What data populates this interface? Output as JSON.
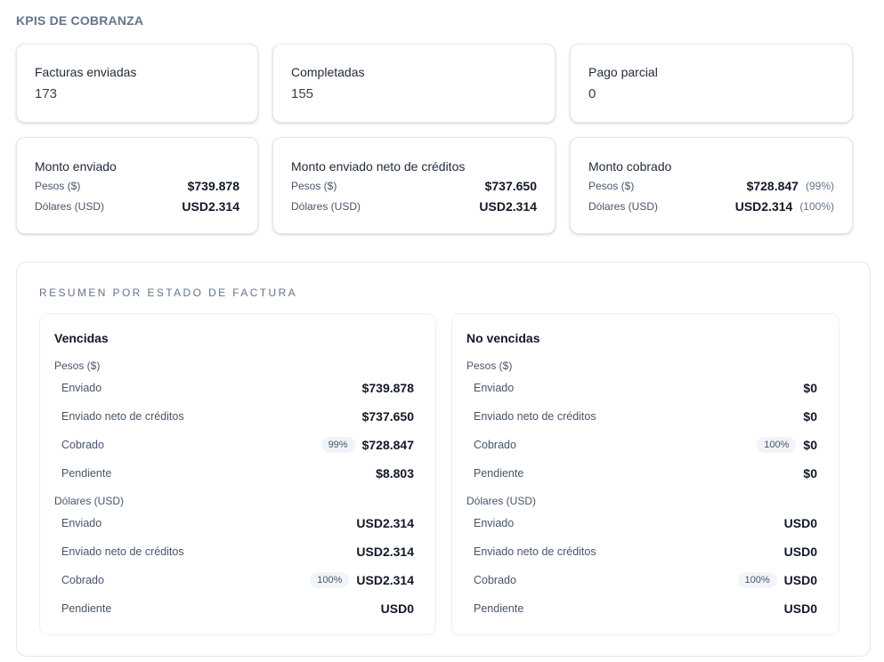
{
  "header": {
    "title": "KPIS DE COBRANZA"
  },
  "kpis": [
    {
      "label": "Facturas enviadas",
      "value": "173"
    },
    {
      "label": "Completadas",
      "value": "155"
    },
    {
      "label": "Pago parcial",
      "value": "0"
    }
  ],
  "money": [
    {
      "title": "Monto enviado",
      "rows": [
        {
          "label": "Pesos ($)",
          "value": "$739.878",
          "pct": ""
        },
        {
          "label": "Dólares (USD)",
          "value": "USD2.314",
          "pct": ""
        }
      ]
    },
    {
      "title": "Monto enviado neto de créditos",
      "rows": [
        {
          "label": "Pesos ($)",
          "value": "$737.650",
          "pct": ""
        },
        {
          "label": "Dólares (USD)",
          "value": "USD2.314",
          "pct": ""
        }
      ]
    },
    {
      "title": "Monto cobrado",
      "rows": [
        {
          "label": "Pesos ($)",
          "value": "$728.847",
          "pct": "(99%)"
        },
        {
          "label": "Dólares (USD)",
          "value": "USD2.314",
          "pct": "(100%)"
        }
      ]
    }
  ],
  "summary": {
    "title": "RESUMEN POR ESTADO DE FACTURA",
    "panels": [
      {
        "title": "Vencidas",
        "pesos_label": "Pesos ($)",
        "pesos": [
          {
            "label": "Enviado",
            "value": "$739.878",
            "badge": ""
          },
          {
            "label": "Enviado neto de créditos",
            "value": "$737.650",
            "badge": ""
          },
          {
            "label": "Cobrado",
            "value": "$728.847",
            "badge": "99%"
          },
          {
            "label": "Pendiente",
            "value": "$8.803",
            "badge": ""
          }
        ],
        "usd_label": "Dólares (USD)",
        "usd": [
          {
            "label": "Enviado",
            "value": "USD2.314",
            "badge": ""
          },
          {
            "label": "Enviado neto de créditos",
            "value": "USD2.314",
            "badge": ""
          },
          {
            "label": "Cobrado",
            "value": "USD2.314",
            "badge": "100%"
          },
          {
            "label": "Pendiente",
            "value": "USD0",
            "badge": ""
          }
        ]
      },
      {
        "title": "No vencidas",
        "pesos_label": "Pesos ($)",
        "pesos": [
          {
            "label": "Enviado",
            "value": "$0",
            "badge": ""
          },
          {
            "label": "Enviado neto de créditos",
            "value": "$0",
            "badge": ""
          },
          {
            "label": "Cobrado",
            "value": "$0",
            "badge": "100%"
          },
          {
            "label": "Pendiente",
            "value": "$0",
            "badge": ""
          }
        ],
        "usd_label": "Dólares (USD)",
        "usd": [
          {
            "label": "Enviado",
            "value": "USD0",
            "badge": ""
          },
          {
            "label": "Enviado neto de créditos",
            "value": "USD0",
            "badge": ""
          },
          {
            "label": "Cobrado",
            "value": "USD0",
            "badge": "100%"
          },
          {
            "label": "Pendiente",
            "value": "USD0",
            "badge": ""
          }
        ]
      }
    ]
  }
}
